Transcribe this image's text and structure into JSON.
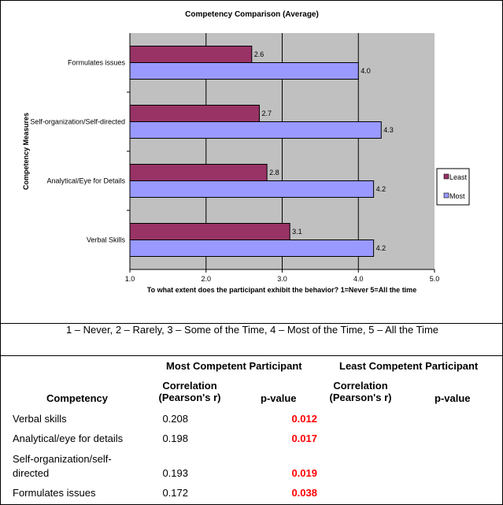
{
  "chart_data": {
    "type": "bar",
    "orientation": "horizontal",
    "title": "Competency Comparison (Average)",
    "xlabel": "To what extent does the participant exhibit the behavior?  1=Never  5=All the time",
    "ylabel": "Competency Measures",
    "xlim": [
      1.0,
      5.0
    ],
    "xticks": [
      "1.0",
      "2.0",
      "3.0",
      "4.0",
      "5.0"
    ],
    "grid": "vertical",
    "legend_position": "right",
    "categories": [
      "Formulates issues",
      "Self-organization/Self-directed",
      "Analytical/Eye for Details",
      "Verbal Skills"
    ],
    "series": [
      {
        "name": "Least",
        "color": "#993366",
        "values": [
          2.6,
          2.7,
          2.8,
          3.1
        ],
        "labels": [
          "2.6",
          "2.7",
          "2.8",
          "3.1"
        ]
      },
      {
        "name": "Most",
        "color": "#9999ff",
        "values": [
          4.0,
          4.3,
          4.2,
          4.2
        ],
        "labels": [
          "4.0",
          "4.3",
          "4.2",
          "4.2"
        ]
      }
    ],
    "plot_background": "#c0c0c0"
  },
  "scale_note": "1 – Never,  2 – Rarely,  3 – Some of the Time,  4 – Most of the Time,  5 – All the Time",
  "table": {
    "group_most": "Most Competent Participant",
    "group_least": "Least Competent Participant",
    "col_competency": "Competency",
    "col_corr_line1": "Correlation",
    "col_corr_line2": "(Pearson's r)",
    "col_p": "p-value",
    "rows": [
      {
        "competency": "Verbal skills",
        "r": "0.208",
        "p": "0.012"
      },
      {
        "competency": "Analytical/eye for details",
        "r": "0.198",
        "p": "0.017"
      },
      {
        "competency_line1": "Self-organization/self-",
        "competency_line2": "directed",
        "r": "0.193",
        "p": "0.019"
      },
      {
        "competency": "Formulates issues",
        "r": "0.172",
        "p": "0.038"
      }
    ],
    "significant_color": "#ff0000"
  }
}
